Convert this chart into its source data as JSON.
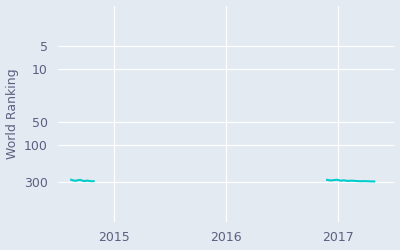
{
  "ylabel": "World Ranking",
  "background_color": "#e4eaf2",
  "line_color": "#00cccc",
  "line_width": 1.5,
  "series1": {
    "dates": [
      2014.62,
      2014.64,
      2014.66,
      2014.68,
      2014.7,
      2014.72,
      2014.74,
      2014.76,
      2014.78,
      2014.8,
      2014.82
    ],
    "values": [
      283,
      289,
      292,
      287,
      284,
      291,
      295,
      290,
      293,
      296,
      295
    ]
  },
  "series2": {
    "dates": [
      2016.9,
      2016.93,
      2016.96,
      2016.99,
      2017.02,
      2017.05,
      2017.08,
      2017.12,
      2017.16,
      2017.2,
      2017.24,
      2017.28,
      2017.32
    ],
    "values": [
      284,
      289,
      286,
      283,
      291,
      288,
      293,
      291,
      294,
      296,
      295,
      297,
      298
    ]
  },
  "xlim": [
    2014.5,
    2017.5
  ],
  "ylim": [
    1.5,
    1000
  ],
  "yticks": [
    5,
    10,
    50,
    100,
    300
  ],
  "xticks": [
    2015,
    2016,
    2017
  ],
  "grid_color": "#ffffff",
  "tick_color": "#5a6080",
  "tick_fontsize": 9
}
